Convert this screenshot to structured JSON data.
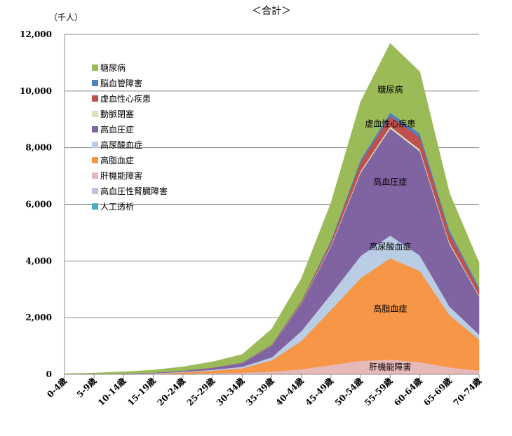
{
  "chart_data": {
    "type": "area",
    "stacked": true,
    "title": "＜合計＞",
    "unit_label": "（千人）",
    "ylim": [
      0,
      12000
    ],
    "yticks": [
      0,
      2000,
      4000,
      6000,
      8000,
      10000,
      12000
    ],
    "ytick_labels": [
      "0",
      "2,000",
      "4,000",
      "6,000",
      "8,000",
      "10,000",
      "12,000"
    ],
    "grid": true,
    "legend_position": "top-left",
    "categories": [
      "0-4歳",
      "5-9歳",
      "10-14歳",
      "15-19歳",
      "20-24歳",
      "25-29歳",
      "30-34歳",
      "35-39歳",
      "40-44歳",
      "45-49歳",
      "50-54歳",
      "55-59歳",
      "60-64歳",
      "65-69歳",
      "70-74歳"
    ],
    "series": [
      {
        "name": "人工透析",
        "color": "#4bacc6",
        "values": [
          0,
          0,
          0,
          0,
          0,
          0,
          0,
          0,
          0,
          0,
          0,
          0,
          0,
          0,
          0
        ]
      },
      {
        "name": "高血圧性腎臓障害",
        "color": "#c5bedb",
        "values": [
          0,
          0,
          0,
          0,
          0,
          0,
          0,
          0,
          0,
          0,
          0,
          0,
          0,
          0,
          0
        ]
      },
      {
        "name": "肝機能障害",
        "color": "#e6b9b8",
        "values": [
          0,
          0,
          5,
          10,
          20,
          40,
          60,
          100,
          180,
          330,
          480,
          520,
          430,
          250,
          130
        ]
      },
      {
        "name": "高脂血症",
        "color": "#f79646",
        "values": [
          0,
          0,
          10,
          20,
          50,
          90,
          150,
          400,
          1000,
          1950,
          2920,
          3580,
          3220,
          1850,
          1100
        ]
      },
      {
        "name": "高尿酸血症",
        "color": "#b9cde5",
        "values": [
          0,
          0,
          5,
          10,
          20,
          30,
          60,
          100,
          350,
          550,
          780,
          800,
          550,
          300,
          180
        ]
      },
      {
        "name": "高血圧症",
        "color": "#8064a2",
        "values": [
          0,
          5,
          10,
          20,
          40,
          70,
          130,
          420,
          960,
          1700,
          2940,
          3780,
          3670,
          2200,
          1350
        ]
      },
      {
        "name": "動脈閉塞",
        "color": "#d7e4bd",
        "values": [
          0,
          0,
          0,
          0,
          0,
          0,
          5,
          10,
          20,
          40,
          60,
          70,
          70,
          60,
          40
        ]
      },
      {
        "name": "虚血性心疾患",
        "color": "#c0504d",
        "values": [
          0,
          0,
          0,
          0,
          5,
          5,
          10,
          20,
          50,
          100,
          300,
          360,
          420,
          320,
          200
        ]
      },
      {
        "name": "脳血管障害",
        "color": "#4f81bd",
        "values": [
          0,
          0,
          0,
          0,
          0,
          5,
          5,
          10,
          30,
          60,
          100,
          130,
          140,
          110,
          80
        ]
      },
      {
        "name": "糖尿病",
        "color": "#9bbb59",
        "values": [
          20,
          40,
          60,
          90,
          130,
          200,
          280,
          540,
          790,
          1320,
          2040,
          2440,
          2180,
          1310,
          860
        ]
      }
    ],
    "legend_order": [
      "糖尿病",
      "脳血管障害",
      "虚血性心疾患",
      "動脈閉塞",
      "高血圧症",
      "高尿酸血症",
      "高脂血症",
      "肝機能障害",
      "高血圧性腎臓障害",
      "人工透析"
    ],
    "annotations": [
      "糖尿病",
      "虚血性心疾患",
      "高血圧症",
      "高尿酸血症",
      "高脂血症",
      "肝機能障害"
    ]
  }
}
